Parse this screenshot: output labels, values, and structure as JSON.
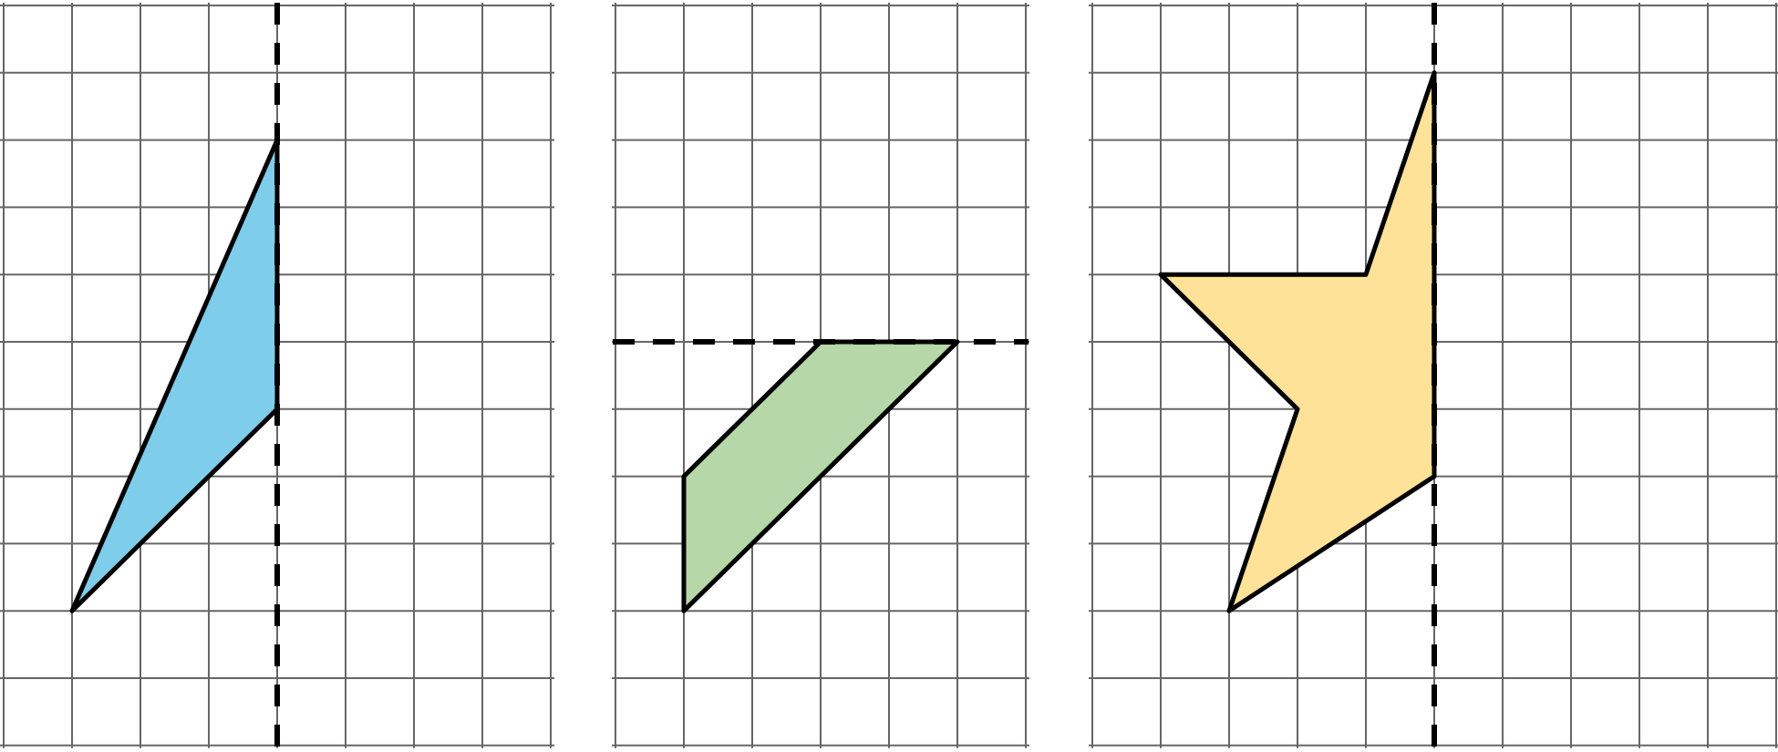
{
  "colors": {
    "grid": "#666666",
    "outline": "#000000",
    "blue_fill": "#7ecdea",
    "green_fill": "#b6d7a8",
    "yellow_fill": "#fde298"
  },
  "panels": [
    {
      "name": "left",
      "cols": 8,
      "rows": 11,
      "shape": {
        "fill_key": "blue_fill",
        "vertices": [
          [
            4,
            2
          ],
          [
            4,
            6
          ],
          [
            1,
            9
          ]
        ]
      },
      "dashed_line": {
        "orientation": "vertical",
        "at": 4
      }
    },
    {
      "name": "middle",
      "cols": 6,
      "rows": 11,
      "shape": {
        "fill_key": "green_fill",
        "vertices": [
          [
            3,
            5
          ],
          [
            5,
            5
          ],
          [
            1,
            9
          ],
          [
            1,
            7
          ]
        ]
      },
      "dashed_line": {
        "orientation": "horizontal",
        "at": 5
      }
    },
    {
      "name": "right",
      "cols": 10,
      "rows": 11,
      "shape": {
        "fill_key": "yellow_fill",
        "vertices": [
          [
            5,
            1
          ],
          [
            5,
            7
          ],
          [
            2,
            9
          ],
          [
            3,
            6
          ],
          [
            1,
            4
          ],
          [
            4,
            4
          ]
        ]
      },
      "dashed_line": {
        "orientation": "vertical",
        "at": 5
      }
    }
  ]
}
